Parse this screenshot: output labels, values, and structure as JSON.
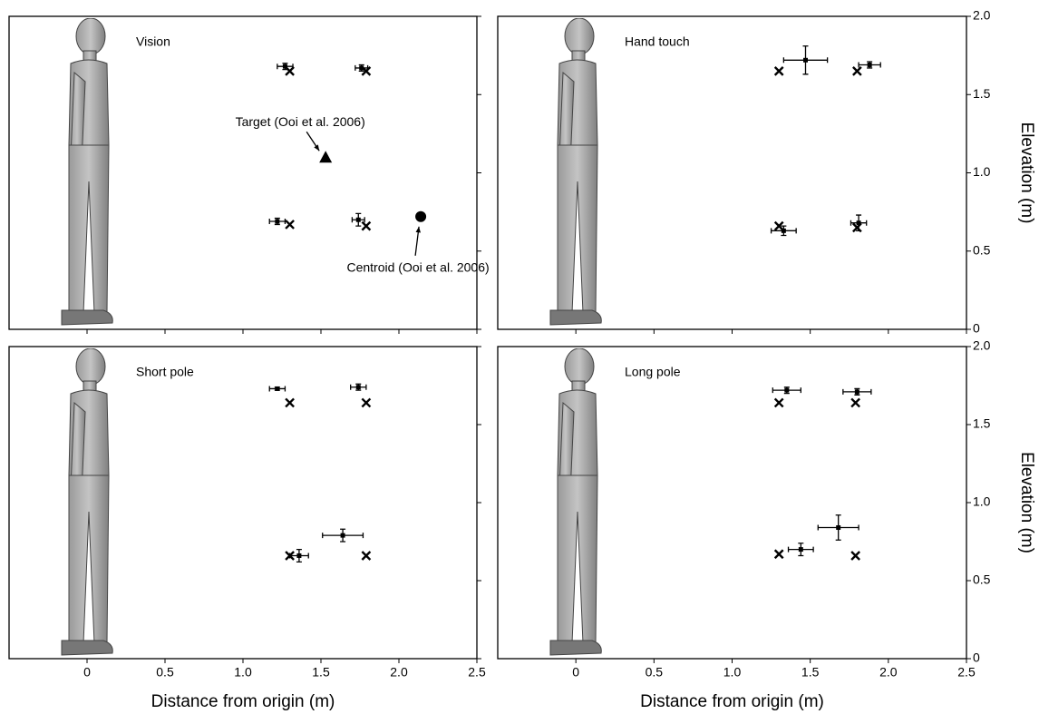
{
  "chart_data": [
    {
      "type": "scatter",
      "title": "Vision",
      "xlim": [
        -0.5,
        2.5
      ],
      "ylim": [
        0,
        2
      ],
      "xticks": [
        0,
        0.5,
        {
          "value": 1,
          "label": "1.0"
        },
        1.5,
        {
          "value": 2,
          "label": "2.0"
        },
        2.5
      ],
      "yticks": [
        0,
        0.5,
        {
          "value": 1,
          "label": "1.0"
        },
        1.5,
        {
          "value": 2,
          "label": "2.0"
        }
      ],
      "xtick_labels": false,
      "ytick_labels": false,
      "series": [
        {
          "marker": "x",
          "color": "#000000",
          "x": [
            1.3,
            1.79,
            1.3,
            1.79
          ],
          "values": [
            1.65,
            1.65,
            0.67,
            0.66
          ]
        },
        {
          "marker": "errorbar",
          "color": "#000000",
          "x": [
            1.27,
            1.76,
            1.22,
            1.74
          ],
          "values": [
            1.68,
            1.67,
            0.69,
            0.7
          ],
          "xerr": [
            0.05,
            0.04,
            0.05,
            0.04
          ],
          "yerr": [
            0.02,
            0.02,
            0.02,
            0.04
          ]
        }
      ],
      "annotations": [
        {
          "text": "Target (Ooi et al. 2006)",
          "x": 1.53,
          "y": 1.1,
          "marker": "triangle"
        },
        {
          "text": "Centroid (Ooi et al. 2006)",
          "x": 2.14,
          "y": 0.72,
          "marker": "circle"
        }
      ]
    },
    {
      "type": "scatter",
      "title": "Hand touch",
      "xlim": [
        -0.5,
        2.5
      ],
      "ylim": [
        0,
        2
      ],
      "xticks": [
        0,
        0.5,
        {
          "value": 1,
          "label": "1.0"
        },
        1.5,
        {
          "value": 2,
          "label": "2.0"
        },
        2.5
      ],
      "yticks": [
        0,
        0.5,
        {
          "value": 1,
          "label": "1.0"
        },
        1.5,
        {
          "value": 2,
          "label": "2.0"
        }
      ],
      "xtick_labels": false,
      "ytick_labels": true,
      "ylabel": "Elevation (m)",
      "series": [
        {
          "marker": "x",
          "color": "#000000",
          "x": [
            1.3,
            1.8,
            1.3,
            1.8
          ],
          "values": [
            1.65,
            1.65,
            0.66,
            0.65
          ]
        },
        {
          "marker": "errorbar",
          "color": "#000000",
          "x": [
            1.47,
            1.88,
            1.33,
            1.81
          ],
          "values": [
            1.72,
            1.69,
            0.63,
            0.68
          ],
          "xerr": [
            0.14,
            0.07,
            0.08,
            0.05
          ],
          "yerr": [
            0.09,
            0.02,
            0.03,
            0.05
          ]
        }
      ]
    },
    {
      "type": "scatter",
      "title": "Short pole",
      "xlim": [
        -0.5,
        2.5
      ],
      "ylim": [
        0,
        2
      ],
      "xticks": [
        0,
        0.5,
        {
          "value": 1,
          "label": "1.0"
        },
        1.5,
        {
          "value": 2,
          "label": "2.0"
        },
        2.5
      ],
      "yticks": [
        0,
        0.5,
        {
          "value": 1,
          "label": "1.0"
        },
        1.5,
        {
          "value": 2,
          "label": "2.0"
        }
      ],
      "xtick_labels": true,
      "ytick_labels": false,
      "xlabel": "Distance from origin (m)",
      "series": [
        {
          "marker": "x",
          "color": "#000000",
          "x": [
            1.3,
            1.79,
            1.3,
            1.79
          ],
          "values": [
            1.64,
            1.64,
            0.66,
            0.66
          ]
        },
        {
          "marker": "errorbar",
          "color": "#000000",
          "x": [
            1.22,
            1.74,
            1.36,
            1.64
          ],
          "values": [
            1.73,
            1.74,
            0.66,
            0.79
          ],
          "xerr": [
            0.05,
            0.05,
            0.06,
            0.13
          ],
          "yerr": [
            0.01,
            0.02,
            0.04,
            0.04
          ]
        }
      ]
    },
    {
      "type": "scatter",
      "title": "Long pole",
      "xlim": [
        -0.5,
        2.5
      ],
      "ylim": [
        0,
        2
      ],
      "xticks": [
        0,
        0.5,
        {
          "value": 1,
          "label": "1.0"
        },
        1.5,
        {
          "value": 2,
          "label": "2.0"
        },
        2.5
      ],
      "yticks": [
        0,
        0.5,
        {
          "value": 1,
          "label": "1.0"
        },
        1.5,
        {
          "value": 2,
          "label": "2.0"
        }
      ],
      "xtick_labels": true,
      "ytick_labels": true,
      "xlabel": "Distance from origin (m)",
      "ylabel": "Elevation (m)",
      "series": [
        {
          "marker": "x",
          "color": "#000000",
          "x": [
            1.3,
            1.79,
            1.3,
            1.79
          ],
          "values": [
            1.64,
            1.64,
            0.67,
            0.66
          ]
        },
        {
          "marker": "errorbar",
          "color": "#000000",
          "x": [
            1.35,
            1.8,
            1.44,
            1.68
          ],
          "values": [
            1.72,
            1.71,
            0.7,
            0.84
          ],
          "xerr": [
            0.09,
            0.09,
            0.08,
            0.13
          ],
          "yerr": [
            0.02,
            0.02,
            0.04,
            0.08
          ]
        }
      ]
    }
  ]
}
